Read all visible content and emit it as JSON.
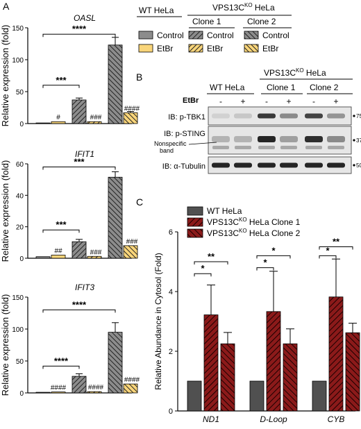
{
  "panel_labels": {
    "a": "A",
    "b": "B",
    "c": "C"
  },
  "colors": {
    "gray": "#8c8c8c",
    "yellow": "#f9d57a",
    "dark": "#505050",
    "red": "#8b1a1a",
    "blot_bg": "#e6e6e6",
    "band": "#1a1a1a"
  },
  "legend_a": {
    "wt_title": "WT HeLa",
    "ko_title": "VPS13C",
    "ko_sup": "KO",
    "ko_suffix": " HeLa",
    "clone1": "Clone 1",
    "clone2": "Clone 2",
    "control": "Control",
    "etbr": "EtBr"
  },
  "blot": {
    "wt_title": "WT HeLa",
    "ko_title": "VPS13C",
    "ko_sup": "KO",
    "ko_suffix": " HeLa",
    "clone1": "Clone 1",
    "clone2": "Clone 2",
    "etbr_label": "EtBr",
    "lane_signs": [
      "-",
      "+",
      "-",
      "+",
      "-",
      "+"
    ],
    "rows": [
      {
        "label": "IB: p-TBK1",
        "marker": "75",
        "intensity": [
          0.1,
          0.15,
          0.85,
          0.45,
          0.8,
          0.4
        ]
      },
      {
        "label": "IB: p-STING",
        "marker": "37",
        "intensity": [
          0.25,
          0.25,
          0.95,
          0.35,
          0.9,
          0.45
        ]
      },
      {
        "label": "IB: α-Tubulin",
        "marker": "50",
        "intensity": [
          0.95,
          0.95,
          0.95,
          0.95,
          0.95,
          0.95
        ]
      }
    ],
    "nonspecific": [
      "Nonspecific",
      "band"
    ]
  },
  "chart_data": [
    {
      "type": "bar",
      "title": "OASL",
      "ylabel": "Relative expression (fold)",
      "ylim": [
        0,
        150
      ],
      "yticks": [
        0,
        50,
        100,
        150
      ],
      "categories": [
        "WT Control",
        "WT EtBr",
        "Clone 1 Control",
        "Clone 1 EtBr",
        "Clone 2 Control",
        "Clone 2 EtBr"
      ],
      "values": [
        1,
        3,
        37,
        3,
        123,
        17
      ],
      "errors": [
        0,
        0,
        3,
        0,
        12,
        2
      ],
      "bar_labels": [
        "",
        "#",
        "",
        "###",
        "",
        "####"
      ],
      "brackets": [
        {
          "from": 0,
          "to": 2,
          "label": "***",
          "y": 60
        },
        {
          "from": 0,
          "to": 4,
          "label": "****",
          "y": 140
        }
      ]
    },
    {
      "type": "bar",
      "title": "IFIT1",
      "ylabel": "Relative expression (fold)",
      "ylim": [
        0,
        60
      ],
      "yticks": [
        0,
        20,
        40,
        60
      ],
      "categories": [
        "WT Control",
        "WT EtBr",
        "Clone 1 Control",
        "Clone 1 EtBr",
        "Clone 2 Control",
        "Clone 2 EtBr"
      ],
      "values": [
        1,
        2,
        10.5,
        1.2,
        51.5,
        8
      ],
      "errors": [
        0,
        0,
        1.5,
        0,
        3.5,
        0
      ],
      "bar_labels": [
        "",
        "##",
        "",
        "###",
        "",
        "###"
      ],
      "brackets": [
        {
          "from": 0,
          "to": 2,
          "label": "***",
          "y": 18
        },
        {
          "from": 0,
          "to": 4,
          "label": "***",
          "y": 58
        }
      ]
    },
    {
      "type": "bar",
      "title": "IFIT3",
      "ylabel": "Relative expression (fold)",
      "ylim": [
        0,
        150
      ],
      "yticks": [
        0,
        50,
        100,
        150
      ],
      "categories": [
        "WT Control",
        "WT EtBr",
        "Clone 1 Control",
        "Clone 1 EtBr",
        "Clone 2 Control",
        "Clone 2 EtBr"
      ],
      "values": [
        1,
        1.5,
        26,
        2,
        95,
        14
      ],
      "errors": [
        0,
        0,
        4,
        0,
        15,
        0
      ],
      "bar_labels": [
        "",
        "####",
        "",
        "####",
        "",
        "####"
      ],
      "brackets": [
        {
          "from": 0,
          "to": 2,
          "label": "****",
          "y": 42
        },
        {
          "from": 0,
          "to": 4,
          "label": "****",
          "y": 130
        }
      ]
    },
    {
      "type": "bar",
      "ylabel": "Relative Abundance in Cytosol (Fold)",
      "ylim": [
        0,
        6
      ],
      "yticks": [
        0,
        2,
        4,
        6
      ],
      "categories": [
        "ND1",
        "D-Loop",
        "CYB"
      ],
      "series": [
        {
          "name": "WT HeLa",
          "values": [
            1,
            1,
            1
          ],
          "errors": [
            0,
            0,
            0
          ]
        },
        {
          "name": "VPS13C KO HeLa Clone 1",
          "values": [
            3.22,
            3.33,
            3.82
          ],
          "errors": [
            1.0,
            1.35,
            1.27
          ]
        },
        {
          "name": "VPS13C KO HeLa Clone 2",
          "values": [
            2.25,
            2.25,
            2.62
          ],
          "errors": [
            0.38,
            0.5,
            0.32
          ]
        }
      ],
      "legend": [
        {
          "prefix": "WT HeLa",
          "sup": "",
          "suffix": ""
        },
        {
          "prefix": "VPS13C",
          "sup": "KO",
          "suffix": " HeLa Clone 1"
        },
        {
          "prefix": "VPS13C",
          "sup": "KO",
          "suffix": " HeLa Clone 2"
        }
      ],
      "brackets": [
        {
          "group": 0,
          "from": 0,
          "to": 1,
          "label": "*",
          "y": 4.6
        },
        {
          "group": 0,
          "from": 0,
          "to": 2,
          "label": "**",
          "y": 5.0
        },
        {
          "group": 1,
          "from": 0,
          "to": 1,
          "label": "*",
          "y": 4.8
        },
        {
          "group": 1,
          "from": 0,
          "to": 2,
          "label": "*",
          "y": 5.2
        },
        {
          "group": 2,
          "from": 0,
          "to": 1,
          "label": "*",
          "y": 5.2
        },
        {
          "group": 2,
          "from": 0,
          "to": 2,
          "label": "**",
          "y": 5.5
        }
      ]
    }
  ]
}
